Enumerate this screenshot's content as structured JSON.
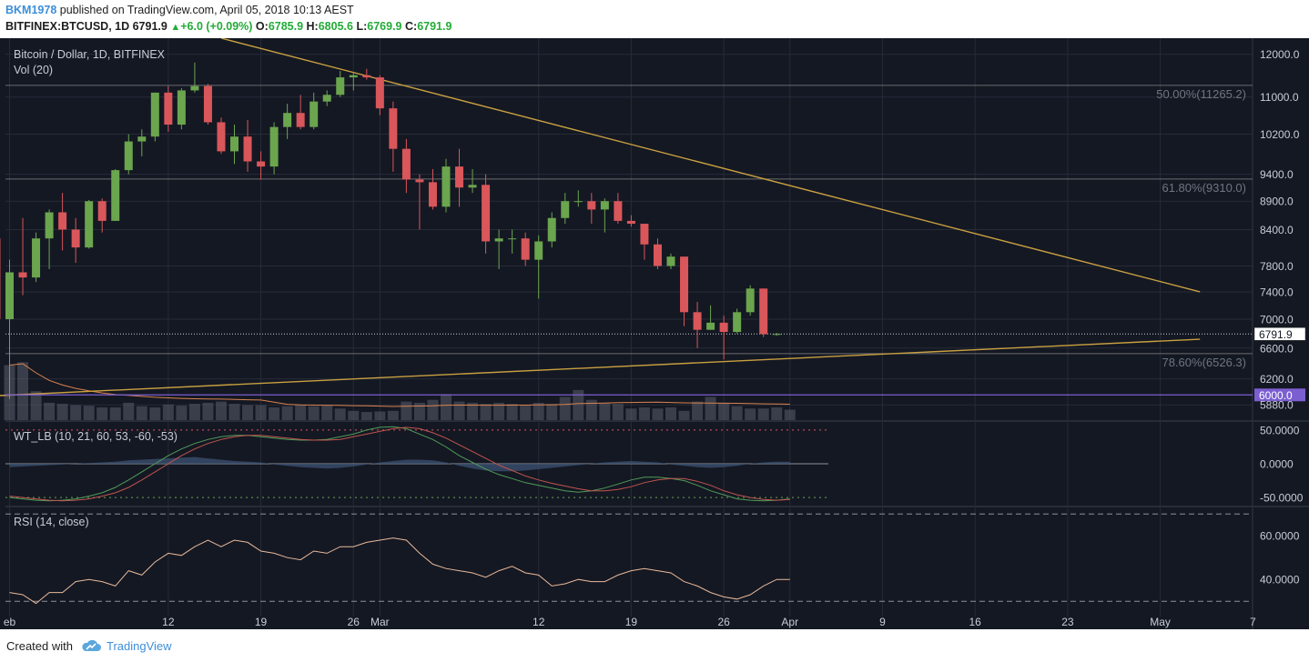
{
  "header": {
    "author": "BKM1978",
    "published": "published on TradingView.com, April 05, 2018 10:13 AEST",
    "symbol": "BITFINEX:BTCUSD, 1D",
    "last": "6791.9",
    "change": "+6.0 (+0.09%)",
    "o_label": "O:",
    "o": "6785.9",
    "h_label": "H:",
    "h": "6805.6",
    "l_label": "L:",
    "l": "6769.9",
    "c_label": "C:",
    "c": "6791.9"
  },
  "footer": {
    "created": "Created with",
    "brand": "TradingView",
    "logo_icon": "tradingview-cloud-icon"
  },
  "colors": {
    "background": "#141823",
    "grid": "#262b38",
    "up": "#6ba54e",
    "down": "#d9565a",
    "trendline": "#c8a040",
    "fib": "#808080",
    "volume": "#5a5f6b",
    "volume_ma": "#d9824e",
    "marker": "#7b5fd1",
    "wt1": "#4f9c58",
    "wt2": "#c0554f",
    "wt_fill": "#3a4f6e",
    "rsi": "#e8b99a",
    "text": "#c8ccd6"
  },
  "chart_data": [
    {
      "type": "candlestick",
      "title": "Bitcoin / Dollar, 1D, BITFINEX",
      "volume_label": "Vol (20)",
      "scale": "log",
      "ylim": [
        5700,
        12400
      ],
      "y_ticks": [
        12000,
        11000,
        10200,
        9400,
        8900,
        8400,
        7800,
        7400,
        7000,
        6600,
        6200,
        5880
      ],
      "y_tick_labels": [
        "12000.0",
        "11000.0",
        "10200.0",
        "9400.0",
        "8900.0",
        "8400.0",
        "7800.0",
        "7400.0",
        "7000.0",
        "6600.0",
        "6200.0",
        "5880.0"
      ],
      "x_ticks": [
        "eb",
        "12",
        "19",
        "26",
        "Mar",
        "12",
        "19",
        "26",
        "Apr",
        "9",
        "16",
        "23",
        "May",
        "7"
      ],
      "x_tick_days": [
        0,
        12,
        19,
        26,
        28,
        40,
        47,
        54,
        59,
        66,
        73,
        80,
        87,
        94
      ],
      "first_day": "2018-02-06",
      "candles": [
        {
          "d": "2018-02-05",
          "o": 8250,
          "h": 8400,
          "l": 6900,
          "c": 7000
        },
        {
          "d": "2018-02-06",
          "o": 7000,
          "h": 7900,
          "l": 5950,
          "c": 7700
        },
        {
          "d": "2018-02-07",
          "o": 7700,
          "h": 8600,
          "l": 7350,
          "c": 7620
        },
        {
          "d": "2018-02-08",
          "o": 7620,
          "h": 8350,
          "l": 7550,
          "c": 8250
        },
        {
          "d": "2018-02-09",
          "o": 8250,
          "h": 8750,
          "l": 7750,
          "c": 8700
        },
        {
          "d": "2018-02-10",
          "o": 8700,
          "h": 9050,
          "l": 8050,
          "c": 8400
        },
        {
          "d": "2018-02-11",
          "o": 8400,
          "h": 8600,
          "l": 7850,
          "c": 8100
        },
        {
          "d": "2018-02-12",
          "o": 8100,
          "h": 8920,
          "l": 8080,
          "c": 8900
        },
        {
          "d": "2018-02-13",
          "o": 8900,
          "h": 8950,
          "l": 8350,
          "c": 8550
        },
        {
          "d": "2018-02-14",
          "o": 8550,
          "h": 9500,
          "l": 8550,
          "c": 9480
        },
        {
          "d": "2018-02-15",
          "o": 9480,
          "h": 10200,
          "l": 9400,
          "c": 10050
        },
        {
          "d": "2018-02-16",
          "o": 10050,
          "h": 10300,
          "l": 9750,
          "c": 10150
        },
        {
          "d": "2018-02-17",
          "o": 10150,
          "h": 11100,
          "l": 10050,
          "c": 11100
        },
        {
          "d": "2018-02-18",
          "o": 11100,
          "h": 11250,
          "l": 10250,
          "c": 10400
        },
        {
          "d": "2018-02-19",
          "o": 10400,
          "h": 11200,
          "l": 10300,
          "c": 11150
        },
        {
          "d": "2018-02-20",
          "o": 11150,
          "h": 11800,
          "l": 11100,
          "c": 11250
        },
        {
          "d": "2018-02-21",
          "o": 11250,
          "h": 11300,
          "l": 10400,
          "c": 10450
        },
        {
          "d": "2018-02-22",
          "o": 10450,
          "h": 10550,
          "l": 9800,
          "c": 9850
        },
        {
          "d": "2018-02-23",
          "o": 9850,
          "h": 10400,
          "l": 9600,
          "c": 10150
        },
        {
          "d": "2018-02-24",
          "o": 10150,
          "h": 10500,
          "l": 9450,
          "c": 9650
        },
        {
          "d": "2018-02-25",
          "o": 9650,
          "h": 9850,
          "l": 9300,
          "c": 9550
        },
        {
          "d": "2018-02-26",
          "o": 9550,
          "h": 10450,
          "l": 9400,
          "c": 10350
        },
        {
          "d": "2018-02-27",
          "o": 10350,
          "h": 10850,
          "l": 10100,
          "c": 10650
        },
        {
          "d": "2018-02-28",
          "o": 10650,
          "h": 11050,
          "l": 10300,
          "c": 10350
        },
        {
          "d": "2018-03-01",
          "o": 10350,
          "h": 11100,
          "l": 10300,
          "c": 10900
        },
        {
          "d": "2018-03-02",
          "o": 10900,
          "h": 11150,
          "l": 10800,
          "c": 11050
        },
        {
          "d": "2018-03-03",
          "o": 11050,
          "h": 11600,
          "l": 11000,
          "c": 11450
        },
        {
          "d": "2018-03-04",
          "o": 11450,
          "h": 11550,
          "l": 11150,
          "c": 11500
        },
        {
          "d": "2018-03-05",
          "o": 11500,
          "h": 11650,
          "l": 11400,
          "c": 11450
        },
        {
          "d": "2018-03-06",
          "o": 11450,
          "h": 11500,
          "l": 10600,
          "c": 10750
        },
        {
          "d": "2018-03-07",
          "o": 10750,
          "h": 10900,
          "l": 9450,
          "c": 9900
        },
        {
          "d": "2018-03-08",
          "o": 9900,
          "h": 10100,
          "l": 9050,
          "c": 9300
        },
        {
          "d": "2018-03-09",
          "o": 9300,
          "h": 9400,
          "l": 8400,
          "c": 9250
        },
        {
          "d": "2018-03-10",
          "o": 9250,
          "h": 9500,
          "l": 8750,
          "c": 8800
        },
        {
          "d": "2018-03-11",
          "o": 8800,
          "h": 9700,
          "l": 8700,
          "c": 9550
        },
        {
          "d": "2018-03-12",
          "o": 9550,
          "h": 9900,
          "l": 8800,
          "c": 9150
        },
        {
          "d": "2018-03-13",
          "o": 9150,
          "h": 9500,
          "l": 9050,
          "c": 9200
        },
        {
          "d": "2018-03-14",
          "o": 9200,
          "h": 9400,
          "l": 8000,
          "c": 8200
        },
        {
          "d": "2018-03-15",
          "o": 8200,
          "h": 8400,
          "l": 7750,
          "c": 8250
        },
        {
          "d": "2018-03-16",
          "o": 8250,
          "h": 8400,
          "l": 8000,
          "c": 8250
        },
        {
          "d": "2018-03-17",
          "o": 8250,
          "h": 8350,
          "l": 7800,
          "c": 7900
        },
        {
          "d": "2018-03-18",
          "o": 7900,
          "h": 8300,
          "l": 7300,
          "c": 8200
        },
        {
          "d": "2018-03-19",
          "o": 8200,
          "h": 8700,
          "l": 8100,
          "c": 8600
        },
        {
          "d": "2018-03-20",
          "o": 8600,
          "h": 9050,
          "l": 8500,
          "c": 8900
        },
        {
          "d": "2018-03-21",
          "o": 8900,
          "h": 9100,
          "l": 8800,
          "c": 8900
        },
        {
          "d": "2018-03-22",
          "o": 8900,
          "h": 9050,
          "l": 8500,
          "c": 8750
        },
        {
          "d": "2018-03-23",
          "o": 8750,
          "h": 8950,
          "l": 8350,
          "c": 8900
        },
        {
          "d": "2018-03-24",
          "o": 8900,
          "h": 9050,
          "l": 8500,
          "c": 8550
        },
        {
          "d": "2018-03-25",
          "o": 8550,
          "h": 8650,
          "l": 8450,
          "c": 8500
        },
        {
          "d": "2018-03-26",
          "o": 8500,
          "h": 8500,
          "l": 7900,
          "c": 8150
        },
        {
          "d": "2018-03-27",
          "o": 8150,
          "h": 8250,
          "l": 7750,
          "c": 7800
        },
        {
          "d": "2018-03-28",
          "o": 7800,
          "h": 8000,
          "l": 7750,
          "c": 7950
        },
        {
          "d": "2018-03-29",
          "o": 7950,
          "h": 7950,
          "l": 6900,
          "c": 7100
        },
        {
          "d": "2018-03-30",
          "o": 7100,
          "h": 7250,
          "l": 6600,
          "c": 6850
        },
        {
          "d": "2018-03-31",
          "o": 6850,
          "h": 7200,
          "l": 6850,
          "c": 6950
        },
        {
          "d": "2018-04-01",
          "o": 6950,
          "h": 7050,
          "l": 6450,
          "c": 6820
        },
        {
          "d": "2018-04-02",
          "o": 6820,
          "h": 7150,
          "l": 6800,
          "c": 7100
        },
        {
          "d": "2018-04-03",
          "o": 7100,
          "h": 7500,
          "l": 7050,
          "c": 7450
        },
        {
          "d": "2018-04-04",
          "o": 7450,
          "h": 7450,
          "l": 6750,
          "c": 6790
        },
        {
          "d": "2018-04-05",
          "o": 6786,
          "h": 6806,
          "l": 6770,
          "c": 6792
        }
      ],
      "volume": [
        95,
        100,
        50,
        30,
        28,
        26,
        25,
        22,
        22,
        30,
        24,
        22,
        27,
        25,
        28,
        30,
        32,
        28,
        26,
        26,
        22,
        24,
        27,
        24,
        25,
        20,
        16,
        14,
        15,
        16,
        32,
        30,
        35,
        45,
        32,
        30,
        28,
        30,
        28,
        25,
        30,
        28,
        40,
        52,
        35,
        30,
        28,
        20,
        22,
        20,
        22,
        16,
        32,
        40,
        30,
        24,
        20,
        20,
        22,
        18
      ],
      "annotations": [
        {
          "text": "50.00%(11265.2)",
          "level": 11265.2
        },
        {
          "text": "61.80%(9310.0)",
          "level": 9310.0
        },
        {
          "text": "78.60%(6526.3)",
          "level": 6526.3
        }
      ],
      "trendlines": [
        {
          "name": "upper",
          "from": {
            "d": "2018-02-22",
            "v": 12400
          },
          "to": {
            "d": "2018-05-07",
            "v": 7400
          }
        },
        {
          "name": "lower",
          "from": {
            "d": "2018-02-05",
            "v": 5990
          },
          "to": {
            "d": "2018-05-07",
            "v": 6720
          }
        }
      ],
      "horizontal_lines": [
        {
          "value": 6000.0,
          "label": "6000.0"
        }
      ],
      "last_value": {
        "value": 6791.9,
        "label": "6791.9"
      }
    },
    {
      "type": "line",
      "title": "WT_LB (10, 21, 60, 53, -60, -53)",
      "ylim": [
        -62,
        62
      ],
      "y_ticks": [
        50,
        0,
        -50
      ],
      "y_tick_labels": [
        "50.0000",
        "0.0000",
        "-50.0000"
      ],
      "series": [
        {
          "name": "wt1",
          "values": [
            -50,
            -52,
            -54,
            -55,
            -54,
            -52,
            -48,
            -43,
            -35,
            -24,
            -12,
            0,
            12,
            22,
            30,
            36,
            40,
            42,
            42,
            40,
            38,
            36,
            35,
            35,
            36,
            40,
            44,
            50,
            54,
            55,
            52,
            44,
            36,
            25,
            12,
            2,
            -8,
            -16,
            -22,
            -28,
            -32,
            -36,
            -40,
            -42,
            -40,
            -36,
            -30,
            -24,
            -20,
            -20,
            -22,
            -25,
            -32,
            -40,
            -46,
            -52,
            -54,
            -55,
            -54,
            -52
          ]
        },
        {
          "name": "wt2",
          "values": [
            -48,
            -50,
            -52,
            -54,
            -55,
            -54,
            -52,
            -48,
            -43,
            -35,
            -24,
            -12,
            0,
            12,
            22,
            30,
            36,
            40,
            42,
            42,
            40,
            38,
            36,
            35,
            35,
            36,
            40,
            44,
            48,
            52,
            54,
            52,
            46,
            38,
            28,
            18,
            8,
            -2,
            -10,
            -18,
            -24,
            -29,
            -33,
            -37,
            -40,
            -40,
            -38,
            -34,
            -28,
            -24,
            -22,
            -22,
            -26,
            -32,
            -40,
            -46,
            -50,
            -53,
            -54,
            -53
          ]
        },
        {
          "name": "wt-fill",
          "values": [
            -5,
            -4,
            -3,
            -2,
            -1,
            0,
            1,
            2,
            3,
            5,
            6,
            7,
            8,
            9,
            10,
            8,
            6,
            4,
            3,
            2,
            -1,
            -3,
            -5,
            -6,
            -7,
            -6,
            -4,
            -1,
            2,
            4,
            6,
            6,
            5,
            2,
            -3,
            -7,
            -10,
            -11,
            -11,
            -10,
            -8,
            -6,
            -4,
            -2,
            0,
            2,
            3,
            4,
            3,
            2,
            -1,
            -3,
            -5,
            -6,
            -5,
            -3,
            0,
            2,
            3,
            3
          ]
        }
      ]
    },
    {
      "type": "line",
      "title": "RSI (14, close)",
      "ylim": [
        23,
        73
      ],
      "y_ticks": [
        60,
        40
      ],
      "y_tick_labels": [
        "60.0000",
        "40.0000"
      ],
      "series": [
        {
          "name": "rsi",
          "values": [
            34,
            33,
            29,
            34,
            34,
            39,
            40,
            39,
            37,
            44,
            42,
            48,
            52,
            51,
            55,
            58,
            55,
            58,
            57,
            53,
            52,
            50,
            49,
            53,
            52,
            55,
            55,
            57,
            58,
            59,
            58,
            52,
            47,
            45,
            44,
            43,
            41,
            44,
            46,
            43,
            42,
            37,
            38,
            40,
            39,
            39,
            42,
            44,
            45,
            44,
            43,
            39,
            37,
            34,
            32,
            31,
            33,
            37,
            40,
            40
          ]
        }
      ]
    }
  ]
}
